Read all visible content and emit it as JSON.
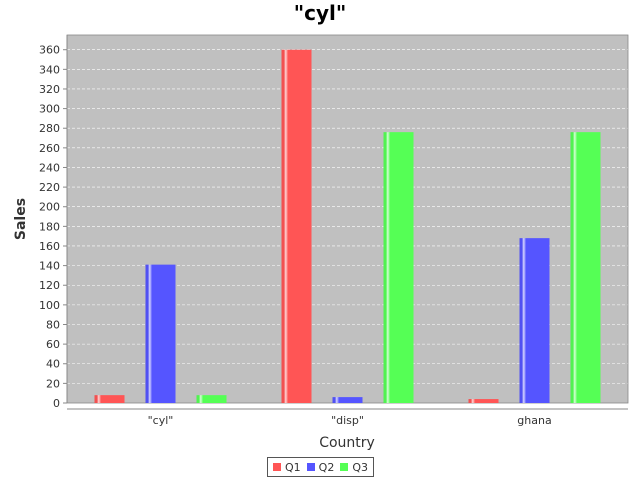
{
  "chart_data": {
    "type": "bar",
    "title": "\"cyl\"",
    "xlabel": "Country",
    "ylabel": "Sales",
    "categories": [
      "\"cyl\"",
      "\"disp\"",
      "ghana"
    ],
    "series": [
      {
        "name": "Q1",
        "values": [
          8,
          360,
          4
        ],
        "color": "#ff5555"
      },
      {
        "name": "Q2",
        "values": [
          141,
          6,
          168
        ],
        "color": "#5555ff"
      },
      {
        "name": "Q3",
        "values": [
          8,
          276,
          276
        ],
        "color": "#55ff55"
      }
    ],
    "ylim": [
      0,
      375
    ],
    "yticks": [
      0,
      20,
      40,
      60,
      80,
      100,
      120,
      140,
      160,
      180,
      200,
      220,
      240,
      260,
      280,
      300,
      320,
      340,
      360
    ],
    "grid": true,
    "legend": "bottom-center",
    "plot_background": "#c0c0c0"
  }
}
